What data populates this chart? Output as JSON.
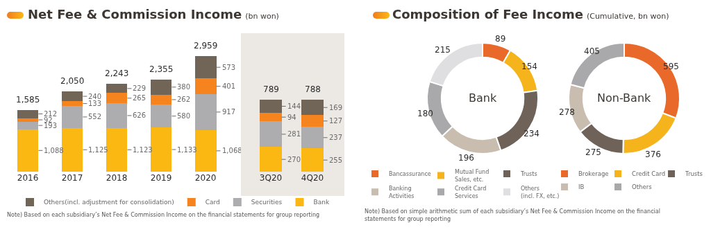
{
  "chart_data": [
    {
      "type": "other",
      "title": "Net Fee & Commission Income",
      "subtitle": "(bn won)"
    },
    {
      "type": "bar",
      "categories": [
        "2016",
        "2017",
        "2018",
        "2019",
        "2020"
      ],
      "series": [
        {
          "name": "Bank",
          "color": "#fbb813",
          "values": [
            1088,
            1125,
            1123,
            1133,
            1068
          ],
          "value_labels": [
            "1,088",
            "1,125",
            "1,123",
            "1,133",
            "1,068"
          ]
        },
        {
          "name": "Securities",
          "color": "#adadaf",
          "values": [
            193,
            552,
            626,
            580,
            917
          ],
          "value_labels": [
            "193",
            "552",
            "626",
            "580",
            "917"
          ]
        },
        {
          "name": "Card",
          "color": "#f5841f",
          "values": [
            92,
            133,
            265,
            262,
            401
          ],
          "value_labels": [
            "92",
            "133",
            "265",
            "262",
            "401"
          ]
        },
        {
          "name": "Others(incl. adjustment for consolidation)",
          "color": "#716558",
          "values": [
            212,
            240,
            229,
            380,
            573
          ],
          "value_labels": [
            "212",
            "240",
            "229",
            "380",
            "573"
          ]
        }
      ],
      "stacked": true,
      "totals": [
        "1,585",
        "2,050",
        "2,243",
        "2,355",
        "2,959"
      ],
      "tick_labels": "x",
      "legend": "bottom",
      "annotations": [
        "Note) Based on each subsidiary’s Net Fee & Commission Income on the financial statements for group reporting"
      ]
    },
    {
      "type": "bar",
      "categories": [
        "3Q20",
        "4Q20"
      ],
      "series": [
        {
          "color": "#fbb813",
          "values": [
            270,
            255
          ],
          "value_labels": [
            "270",
            "255"
          ]
        },
        {
          "color": "#adadaf",
          "values": [
            281,
            237
          ],
          "value_labels": [
            "281",
            "237"
          ]
        },
        {
          "color": "#f5841f",
          "values": [
            94,
            127
          ],
          "value_labels": [
            "94",
            "127"
          ]
        },
        {
          "color": "#716558",
          "values": [
            144,
            169
          ],
          "value_labels": [
            "144",
            "169"
          ]
        }
      ],
      "stacked": true,
      "totals": [
        "789",
        "788"
      ],
      "tick_labels": "x"
    },
    {
      "type": "other",
      "title": "Composition of Fee Income",
      "subtitle": "(Cumulative, bn won)"
    },
    {
      "type": "donut",
      "categories": [
        "Bancassurance",
        "Mutual Fund\nSales, etc.",
        "Trusts",
        "Banking\nActivities",
        "Credit Card\nServices",
        "Others\n(incl. FX, etc.)"
      ],
      "values": [
        89,
        154,
        234,
        196,
        180,
        215
      ],
      "colors": [
        "#e8692a",
        "#f5b31c",
        "#6f6258",
        "#c9bdb0",
        "#a9a9ab",
        "#dfdfe1"
      ],
      "data_labels": true,
      "legend": "bottom",
      "annotations": [
        "Bank",
        "Note) Based on simple arithmetic sum of each subsidiary’s Net Fee & Commission Income on the financial\nstatements for group reporting"
      ]
    },
    {
      "type": "donut",
      "categories": [
        "Brokerage",
        "Credit Card",
        "Trusts",
        "IB",
        "Others"
      ],
      "values": [
        595,
        376,
        275,
        278,
        405
      ],
      "colors": [
        "#e8692a",
        "#f5b31c",
        "#6f6258",
        "#c9bdb0",
        "#a9a9ab"
      ],
      "data_labels": true,
      "legend": "bottom",
      "annotations": [
        "Non-Bank"
      ]
    }
  ]
}
